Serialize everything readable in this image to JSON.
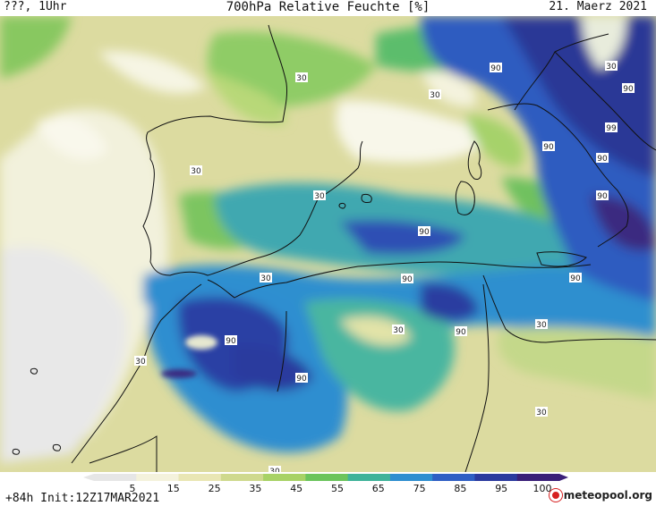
{
  "header": {
    "left": "???, 1Uhr",
    "title": "700hPa Relative Feuchte [%]",
    "date": "21. Maerz 2021"
  },
  "colorbar": {
    "ticks": [
      "5",
      "15",
      "25",
      "35",
      "45",
      "55",
      "65",
      "75",
      "85",
      "95",
      "100"
    ],
    "colors": [
      "#e6e6e6",
      "#f4f2dc",
      "#e9e6b4",
      "#cfd98e",
      "#a8d266",
      "#6cc45c",
      "#3fb39a",
      "#2e8ed0",
      "#2f5fc4",
      "#2b3a9e",
      "#3a1f78"
    ]
  },
  "footer": {
    "init": "+84h Init:12Z17MAR2021",
    "logo": "meteopool.org"
  },
  "map": {
    "contour_labels": [
      "30",
      "30",
      "30",
      "30",
      "30",
      "30",
      "30",
      "30",
      "30",
      "30",
      "30",
      "90",
      "90",
      "90",
      "90",
      "90",
      "90",
      "90",
      "90",
      "90",
      "90",
      "90",
      "99"
    ]
  }
}
